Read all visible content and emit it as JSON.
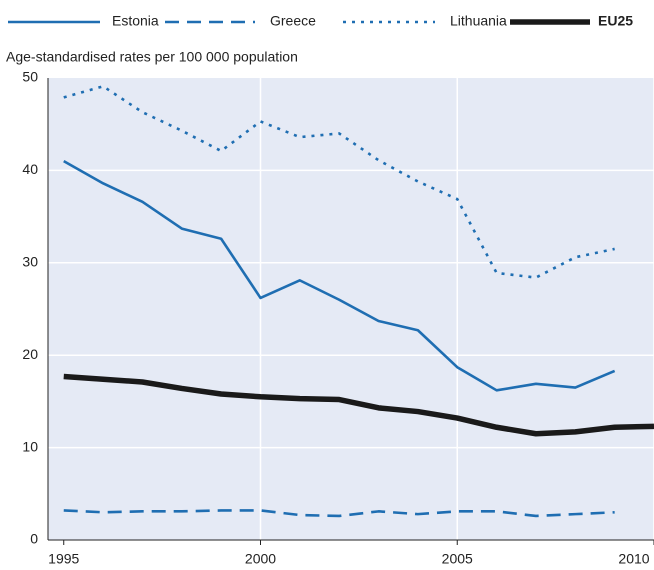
{
  "chart_data": {
    "type": "line",
    "subtitle": "Age-standardised rates per 100 000 population",
    "x": [
      1995,
      1996,
      1997,
      1998,
      1999,
      2000,
      2001,
      2002,
      2003,
      2004,
      2005,
      2006,
      2007,
      2008,
      2009,
      2010
    ],
    "series": [
      {
        "name": "Estonia",
        "color": "#1f6eb2",
        "style": "solid",
        "values": [
          41,
          38.6,
          36.6,
          33.7,
          32.6,
          26.2,
          28.1,
          26,
          23.7,
          22.7,
          18.7,
          16.2,
          16.9,
          16.5,
          18.3,
          null
        ]
      },
      {
        "name": "Greece",
        "color": "#1f6eb2",
        "style": "dashed",
        "values": [
          3.2,
          3.0,
          3.1,
          3.1,
          3.2,
          3.2,
          2.7,
          2.6,
          3.1,
          2.8,
          3.1,
          3.1,
          2.6,
          2.8,
          3.0,
          null
        ]
      },
      {
        "name": "Lithuania",
        "color": "#1f6eb2",
        "style": "dotted",
        "values": [
          47.9,
          49.1,
          46.3,
          44.3,
          42.1,
          45.3,
          43.6,
          44,
          41.1,
          38.8,
          36.9,
          28.9,
          28.4,
          30.6,
          31.5,
          null
        ]
      },
      {
        "name": "EU25",
        "color": "#1a1a1a",
        "style": "bold",
        "values": [
          17.7,
          17.4,
          17.1,
          16.4,
          15.8,
          15.5,
          15.3,
          15.2,
          14.3,
          13.9,
          13.2,
          12.2,
          11.5,
          11.7,
          12.2,
          12.3
        ]
      }
    ],
    "xlim": [
      1994.6,
      2010
    ],
    "xticks": [
      1995,
      2000,
      2005,
      2010
    ],
    "ylim": [
      0,
      50
    ],
    "yticks": [
      0,
      10,
      20,
      30,
      40,
      50
    ],
    "grid": true,
    "legend": "top"
  }
}
